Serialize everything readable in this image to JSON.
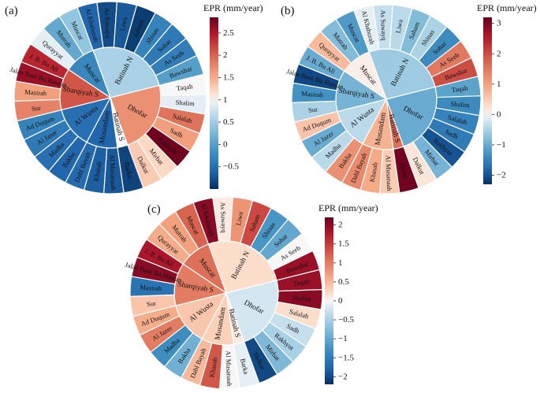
{
  "figure": {
    "description_labels": [
      "(a)",
      "(b)",
      "(c)"
    ]
  },
  "chart_data": [
    {
      "type": "sunburst",
      "panel": "(a)",
      "colorbar": {
        "title": "EPR (mm/year)",
        "range": [
          -1.0,
          2.85
        ],
        "ticks": [
          -0.5,
          0,
          0.5,
          1,
          1.5,
          2,
          2.5
        ]
      },
      "inner": [
        {
          "name": "Batinah N",
          "value": 0.55,
          "children": [
            {
              "name": "Al Khaburah",
              "value": -0.6
            },
            {
              "name": "As Suwayq",
              "value": -0.8
            },
            {
              "name": "Liwa",
              "value": -0.7
            },
            {
              "name": "Saham",
              "value": -0.9
            },
            {
              "name": "Shinas",
              "value": -0.3
            },
            {
              "name": "Sohar",
              "value": -0.4
            },
            {
              "name": "As Seeb",
              "value": -0.35
            },
            {
              "name": "Bawshar",
              "value": 0.0
            }
          ]
        },
        {
          "name": "Dhofar",
          "value": 1.7,
          "children": [
            {
              "name": "Taqah",
              "value": 1.0
            },
            {
              "name": "Shalim",
              "value": 0.9
            },
            {
              "name": "Salalah",
              "value": 1.9
            },
            {
              "name": "Sadh",
              "value": 1.6
            },
            {
              "name": "Rakhyut",
              "value": 2.8
            },
            {
              "name": "Mirbat",
              "value": 1.2
            },
            {
              "name": "Dalkut",
              "value": 1.3
            }
          ]
        },
        {
          "name": "Batinah S",
          "value": 1.0,
          "children": [
            {
              "name": "Barka",
              "value": -0.85
            }
          ]
        },
        {
          "name": "Musandam",
          "value": -0.6,
          "children": [
            {
              "name": "Al Musanaah",
              "value": -0.7
            },
            {
              "name": "Khasab",
              "value": -0.65
            },
            {
              "name": "Dabl Bayah",
              "value": -0.55
            }
          ]
        },
        {
          "name": "Al Wusta",
          "value": -0.5,
          "children": [
            {
              "name": "Bakha",
              "value": -0.6
            },
            {
              "name": "Madha",
              "value": -0.5
            },
            {
              "name": "Al Jazer",
              "value": -0.4
            },
            {
              "name": "Ad Duqum",
              "value": -0.3
            }
          ]
        },
        {
          "name": "Sharqiyah S",
          "value": 2.1,
          "children": [
            {
              "name": "Sur",
              "value": 1.8
            },
            {
              "name": "Masirah",
              "value": 1.6
            },
            {
              "name": "Jalan Bani Bu Hassan",
              "value": 2.6
            },
            {
              "name": "J. B. Bu Ali",
              "value": 2.4
            }
          ]
        },
        {
          "name": "Muscat",
          "value": -0.25,
          "children": [
            {
              "name": "Qurayyat",
              "value": 0.9
            },
            {
              "name": "Mutrah",
              "value": 0.1
            },
            {
              "name": "Muscat",
              "value": 0.4
            }
          ]
        }
      ]
    },
    {
      "type": "sunburst",
      "panel": "(b)",
      "colorbar": {
        "title": "EPR (mm/year)",
        "range": [
          -2.3,
          3.2
        ],
        "ticks": [
          -2,
          -1,
          0,
          1,
          2,
          3
        ]
      },
      "inner": [
        {
          "name": "Batinah N",
          "value": -0.6,
          "children": [
            {
              "name": "Al Khaburah",
              "value": -0.1
            },
            {
              "name": "As Suwayq",
              "value": -0.3
            },
            {
              "name": "Liwa",
              "value": -0.4
            },
            {
              "name": "Saham",
              "value": -0.8
            },
            {
              "name": "Shinas",
              "value": -0.5
            },
            {
              "name": "Sohar",
              "value": -1.4
            },
            {
              "name": "As Seeb",
              "value": 1.5
            },
            {
              "name": "Bawshar",
              "value": 2.0
            }
          ]
        },
        {
          "name": "Dhofar",
          "value": -1.0,
          "children": [
            {
              "name": "Taqah",
              "value": -1.1
            },
            {
              "name": "Shalim",
              "value": -1.4
            },
            {
              "name": "Salalah",
              "value": -1.5
            },
            {
              "name": "Sadh",
              "value": -1.6
            },
            {
              "name": "Rakhyut",
              "value": -2.0
            },
            {
              "name": "Mirbat",
              "value": -0.9
            },
            {
              "name": "Dalkut",
              "value": 0.2
            }
          ]
        },
        {
          "name": "Batinah S",
          "value": 1.6,
          "children": [
            {
              "name": "Barka",
              "value": 3.1
            }
          ]
        },
        {
          "name": "Musandam",
          "value": 0.8,
          "children": [
            {
              "name": "Al Musanaah",
              "value": 0.5
            },
            {
              "name": "Khasab",
              "value": 0.9
            },
            {
              "name": "Dabl Bayah",
              "value": 1.3
            }
          ]
        },
        {
          "name": "Al Wusta",
          "value": -0.4,
          "children": [
            {
              "name": "Bakha",
              "value": 1.2
            },
            {
              "name": "Madha",
              "value": -0.4
            },
            {
              "name": "Al Jazer",
              "value": -1.0
            },
            {
              "name": "Ad Duqum",
              "value": 0.6
            }
          ]
        },
        {
          "name": "Sharqiyah S",
          "value": -0.9,
          "children": [
            {
              "name": "Sur",
              "value": -0.5
            },
            {
              "name": "Masirah",
              "value": -1.3
            },
            {
              "name": "Jalan Bani Bu Hassan",
              "value": -2.1
            },
            {
              "name": "J. B. Bu Ali",
              "value": -1.0
            }
          ]
        },
        {
          "name": "Muscat",
          "value": 0.1,
          "children": [
            {
              "name": "Qurayyat",
              "value": 0.7
            },
            {
              "name": "Mutrah",
              "value": -0.8
            },
            {
              "name": "Muscat",
              "value": -1.2
            }
          ]
        }
      ]
    },
    {
      "type": "sunburst",
      "panel": "(c)",
      "colorbar": {
        "title": "EPR (mm/year)",
        "range": [
          -2.2,
          2.2
        ],
        "ticks": [
          -2,
          -1.5,
          -1,
          -0.5,
          0,
          0.5,
          1,
          1.5,
          2
        ]
      },
      "inner": [
        {
          "name": "Batinah N",
          "value": 0.2,
          "children": [
            {
              "name": "Al Khaburah",
              "value": 2.0
            },
            {
              "name": "As Suwayq",
              "value": 0.1
            },
            {
              "name": "Liwa",
              "value": 0.8
            },
            {
              "name": "Saham",
              "value": 1.4
            },
            {
              "name": "Shinas",
              "value": -1.2
            },
            {
              "name": "Sohar",
              "value": -1.0
            },
            {
              "name": "As Seeb",
              "value": 0.0
            },
            {
              "name": "Bawshar",
              "value": 1.9
            }
          ]
        },
        {
          "name": "Dhofar",
          "value": -0.2,
          "children": [
            {
              "name": "Taqah",
              "value": 1.9
            },
            {
              "name": "Shalim",
              "value": 2.0
            },
            {
              "name": "Salalah",
              "value": 0.2
            },
            {
              "name": "Sadh",
              "value": -0.3
            },
            {
              "name": "Rakhyut",
              "value": -0.5
            },
            {
              "name": "Mirbat",
              "value": -0.8
            },
            {
              "name": "Dalkut",
              "value": -2.0
            }
          ]
        },
        {
          "name": "Batinah S",
          "value": 0.1,
          "children": [
            {
              "name": "Barka",
              "value": -0.1
            }
          ]
        },
        {
          "name": "Musandam",
          "value": 0.3,
          "children": [
            {
              "name": "Al Musanaah",
              "value": 0.0
            },
            {
              "name": "Khasab",
              "value": 1.3
            },
            {
              "name": "Dabl Bayah",
              "value": 0.5
            }
          ]
        },
        {
          "name": "Al Wusta",
          "value": 0.4,
          "children": [
            {
              "name": "Bakha",
              "value": -0.9
            },
            {
              "name": "Madha",
              "value": -1.3
            },
            {
              "name": "Al Jazer",
              "value": 1.0
            },
            {
              "name": "Ad Duqum",
              "value": 0.6
            }
          ]
        },
        {
          "name": "Sharqiyah S",
          "value": 1.0,
          "children": [
            {
              "name": "Sur",
              "value": 0.4
            },
            {
              "name": "Masirah",
              "value": -1.6
            },
            {
              "name": "Jalan Bani Bu Hassan",
              "value": 2.0
            },
            {
              "name": "J. B. Bu Ali",
              "value": 1.8
            }
          ]
        },
        {
          "name": "Muscat",
          "value": 1.1,
          "children": [
            {
              "name": "Qurayyat",
              "value": 0.6
            },
            {
              "name": "Mutrah",
              "value": 0.7
            },
            {
              "name": "Muscat",
              "value": 1.2
            }
          ]
        }
      ]
    }
  ]
}
